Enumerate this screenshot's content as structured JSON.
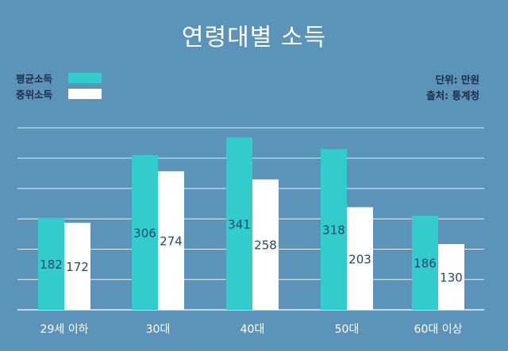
{
  "chart_data": {
    "type": "bar",
    "title": "연령대별 소득",
    "unit_note": "단위: 만원",
    "source_note": "출처: 통계청",
    "categories": [
      "29세 이하",
      "30대",
      "40대",
      "50대",
      "60대 이상"
    ],
    "series": [
      {
        "name": "평균소득",
        "color": "#33cccc",
        "values": [
          182,
          306,
          341,
          318,
          186
        ]
      },
      {
        "name": "중위소득",
        "color": "#ffffff",
        "values": [
          172,
          274,
          258,
          203,
          130
        ]
      }
    ],
    "ylim": [
      0,
      400
    ],
    "grid": true,
    "legend_position": "top-left"
  }
}
